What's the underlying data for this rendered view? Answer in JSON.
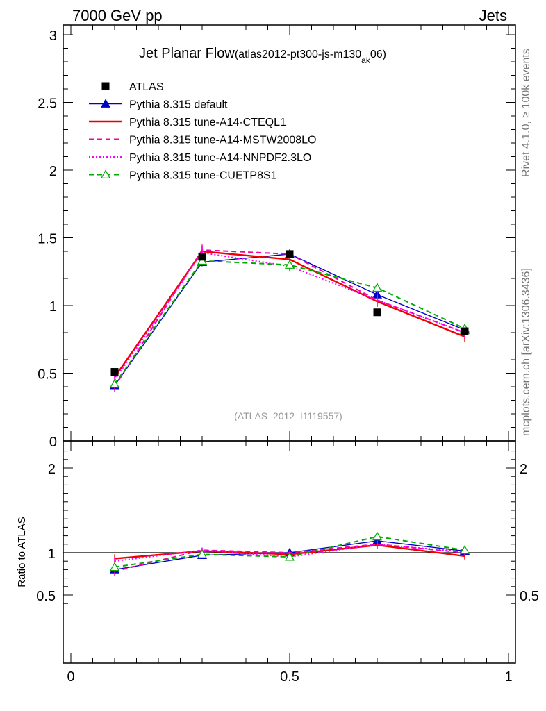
{
  "header": {
    "left": "7000 GeV pp",
    "right": "Jets"
  },
  "side_labels": {
    "rivet": "Rivet 4.1.0, ≥ 100k events",
    "mcplots": "mcplots.cern.ch [arXiv:1306.3436]"
  },
  "chart_data": {
    "type": "line",
    "title": "Jet Planar Flow",
    "subtitle": {
      "main": "(atlas2012-pt300-js-m130",
      "sub": "ak",
      "tail": "06)"
    },
    "watermark": "(ATLAS_2012_I1119557)",
    "x": [
      0.1,
      0.3,
      0.5,
      0.7,
      0.9
    ],
    "xlim": [
      0,
      1
    ],
    "x_ticks": [
      "0",
      "0.5",
      "1"
    ],
    "x_tick_values": [
      0,
      0.5,
      1
    ],
    "main_ylim": [
      0,
      3
    ],
    "main_y_ticks": [
      "0",
      "0.5",
      "1",
      "1.5",
      "2",
      "2.5",
      "3"
    ],
    "main_y_tick_values": [
      0,
      0.5,
      1,
      1.5,
      2,
      2.5,
      3
    ],
    "ratio_ylim": [
      0.3,
      2.3
    ],
    "ratio_ylabel": "Ratio to ATLAS",
    "ratio_y_ticks": [
      "0.5",
      "1",
      "2"
    ],
    "ratio_y_tick_values": [
      0.5,
      1,
      2
    ],
    "ratio_right_ticks": [
      "0.5",
      "2"
    ],
    "ratio_right_tick_values": [
      0.5,
      2
    ],
    "data": {
      "name": "ATLAS",
      "values": [
        0.51,
        1.36,
        1.38,
        0.95,
        0.81
      ]
    },
    "series": [
      {
        "name": "Pythia 8.315 default",
        "color": "#0000cc",
        "style": "solid",
        "marker": "triangle",
        "values": [
          0.41,
          1.32,
          1.38,
          1.08,
          0.82
        ],
        "errors": [
          0.02,
          0.03,
          0.03,
          0.03,
          0.02
        ],
        "ratio": [
          0.8,
          0.97,
          1.0,
          1.14,
          1.02
        ],
        "ratio_errors": [
          0.04,
          0.02,
          0.02,
          0.03,
          0.02
        ]
      },
      {
        "name": "Pythia 8.315 tune-A14-CTEQL1",
        "color": "#ee0000",
        "style": "solid",
        "marker": "none",
        "values": [
          0.47,
          1.4,
          1.34,
          1.03,
          0.77
        ],
        "errors": [
          0.03,
          0.04,
          0.04,
          0.04,
          0.04
        ],
        "ratio": [
          0.93,
          1.02,
          0.98,
          1.09,
          0.96
        ],
        "ratio_errors": [
          0.05,
          0.03,
          0.03,
          0.04,
          0.04
        ]
      },
      {
        "name": "Pythia 8.315 tune-A14-MSTW2008LO",
        "color": "#ee00aa",
        "style": "dashed",
        "marker": "none",
        "values": [
          0.4,
          1.41,
          1.38,
          1.04,
          0.8
        ],
        "errors": [
          0.04,
          0.04,
          0.04,
          0.04,
          0.03
        ],
        "ratio": [
          0.78,
          1.03,
          1.0,
          1.1,
          1.0
        ],
        "ratio_errors": [
          0.05,
          0.03,
          0.03,
          0.04,
          0.03
        ]
      },
      {
        "name": "Pythia 8.315 tune-A14-NNPDF2.3LO",
        "color": "#ff00ff",
        "style": "dotted",
        "marker": "none",
        "values": [
          0.45,
          1.39,
          1.29,
          1.04,
          0.8
        ],
        "errors": [
          0.04,
          0.04,
          0.04,
          0.04,
          0.03
        ],
        "ratio": [
          0.9,
          1.03,
          0.95,
          1.1,
          1.01
        ],
        "ratio_errors": [
          0.05,
          0.03,
          0.03,
          0.04,
          0.03
        ]
      },
      {
        "name": "Pythia 8.315 tune-CUETP8S1",
        "color": "#00aa00",
        "style": "dashed",
        "marker": "open-triangle",
        "values": [
          0.42,
          1.33,
          1.3,
          1.13,
          0.83
        ],
        "errors": [
          0.03,
          0.03,
          0.04,
          0.04,
          0.03
        ],
        "ratio": [
          0.83,
          0.98,
          0.95,
          1.19,
          1.03
        ],
        "ratio_errors": [
          0.04,
          0.03,
          0.03,
          0.04,
          0.03
        ]
      }
    ]
  }
}
